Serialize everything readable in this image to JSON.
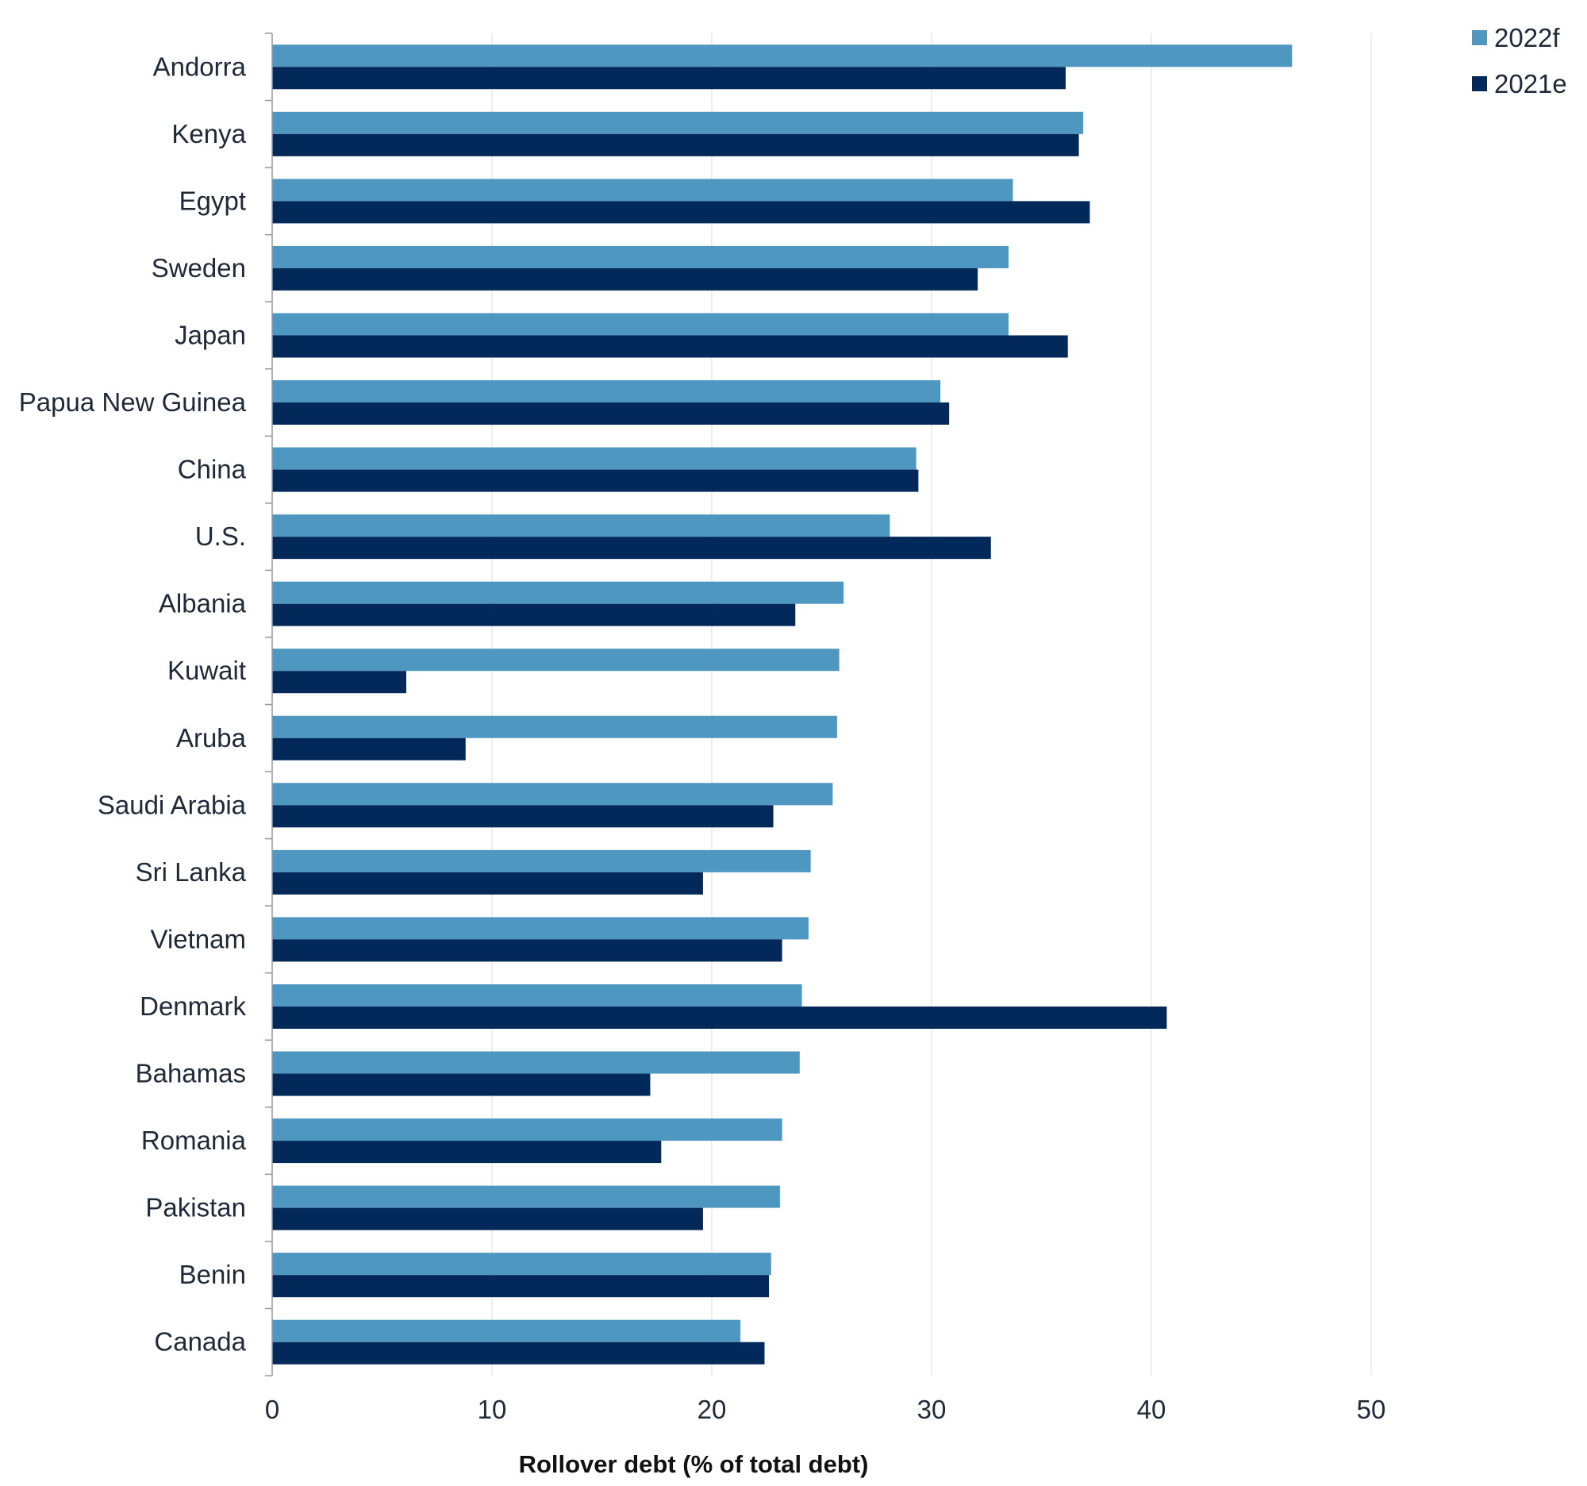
{
  "chart_data": {
    "type": "bar",
    "orientation": "horizontal",
    "categories": [
      "Andorra",
      "Kenya",
      "Egypt",
      "Sweden",
      "Japan",
      "Papua New Guinea",
      "China",
      "U.S.",
      "Albania",
      "Kuwait",
      "Aruba",
      "Saudi Arabia",
      "Sri Lanka",
      "Vietnam",
      "Denmark",
      "Bahamas",
      "Romania",
      "Pakistan",
      "Benin",
      "Canada"
    ],
    "series": [
      {
        "name": "2022f",
        "color": "#4e97c0",
        "values": [
          46.4,
          36.9,
          33.7,
          33.5,
          33.5,
          30.4,
          29.3,
          28.1,
          26.0,
          25.8,
          25.7,
          25.5,
          24.5,
          24.4,
          24.1,
          24.0,
          23.2,
          23.1,
          22.7,
          21.3
        ]
      },
      {
        "name": "2021e",
        "color": "#03285a",
        "values": [
          36.1,
          36.7,
          37.2,
          32.1,
          36.2,
          30.8,
          29.4,
          32.7,
          23.8,
          6.1,
          8.8,
          22.8,
          19.6,
          23.2,
          40.7,
          17.2,
          17.7,
          19.6,
          22.6,
          22.4
        ]
      }
    ],
    "xlabel": "Rollover debt (% of total debt)",
    "xlim": [
      0,
      50
    ],
    "xticks": [
      "0",
      "10",
      "20",
      "30",
      "40",
      "50"
    ],
    "grid": "vertical",
    "legend": "top-right"
  }
}
